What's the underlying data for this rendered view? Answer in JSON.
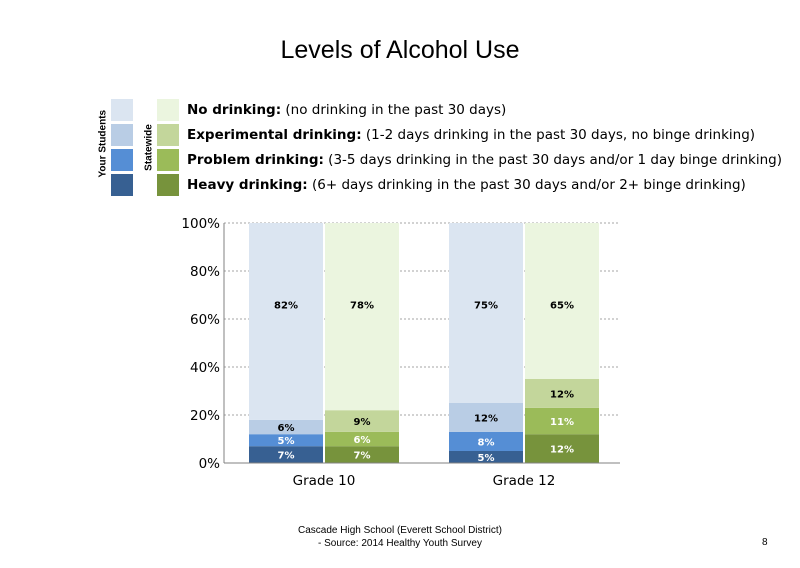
{
  "title": "Levels of Alcohol Use",
  "legend": {
    "group_your_students": "Your Students",
    "group_statewide": "Statewide",
    "items": [
      {
        "bold": "No drinking:",
        "desc": " (no drinking in the past 30 days)",
        "your_color": "#dbe5f1",
        "state_color": "#ebf5df"
      },
      {
        "bold": "Experimental drinking:",
        "desc": " (1-2 days drinking in the past 30 days, no binge drinking)",
        "your_color": "#b9cde5",
        "state_color": "#c3d69b"
      },
      {
        "bold": "Problem drinking:",
        "desc": " (3-5 days drinking in the past 30 days and/or 1 day binge drinking)",
        "your_color": "#558ed5",
        "state_color": "#9bbb59"
      },
      {
        "bold": "Heavy drinking:",
        "desc": " (6+ days drinking in the past 30 days and/or 2+ binge drinking)",
        "your_color": "#376092",
        "state_color": "#77933c"
      }
    ]
  },
  "chart_data": {
    "type": "bar",
    "stacked": true,
    "categories": [
      "Grade 10",
      "Grade 12"
    ],
    "bar_groups": [
      "Your Students",
      "Statewide"
    ],
    "ylim": [
      0,
      100
    ],
    "yticks": [
      "0%",
      "20%",
      "40%",
      "60%",
      "80%",
      "100%"
    ],
    "grid": true,
    "series": [
      {
        "name": "Heavy drinking",
        "your_students": [
          7,
          5
        ],
        "statewide": [
          7,
          12
        ]
      },
      {
        "name": "Problem drinking",
        "your_students": [
          5,
          8
        ],
        "statewide": [
          6,
          11
        ]
      },
      {
        "name": "Experimental drinking",
        "your_students": [
          6,
          12
        ],
        "statewide": [
          9,
          12
        ]
      },
      {
        "name": "No drinking",
        "your_students": [
          82,
          75
        ],
        "statewide": [
          78,
          65
        ]
      }
    ],
    "colors": {
      "your_students": [
        "#376092",
        "#558ed5",
        "#b9cde5",
        "#dbe5f1"
      ],
      "statewide": [
        "#77933c",
        "#9bbb59",
        "#c3d69b",
        "#ebf5df"
      ]
    }
  },
  "footer": {
    "line1": "Cascade High School (Everett School District)",
    "line2": "- Source: 2014 Healthy  Youth Survey"
  },
  "page_number": "8"
}
